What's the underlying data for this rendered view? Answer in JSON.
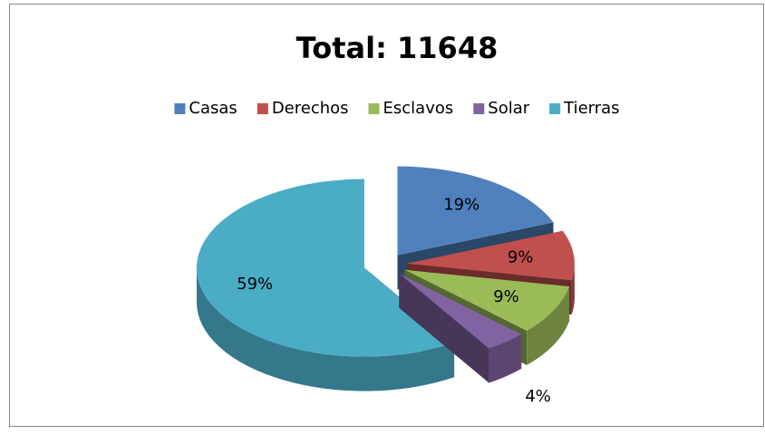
{
  "chart_data": {
    "type": "pie3d",
    "title": "Total: 11648",
    "categories": [
      "Casas",
      "Derechos",
      "Esclavos",
      "Solar",
      "Tierras"
    ],
    "values": [
      19,
      9,
      9,
      4,
      59
    ],
    "value_labels": [
      "19%",
      "9%",
      "9%",
      "4%",
      "59%"
    ],
    "colors": [
      "#4f81bd",
      "#c0504d",
      "#9bbb59",
      "#8064a2",
      "#4bacc6"
    ],
    "legend": "top"
  }
}
